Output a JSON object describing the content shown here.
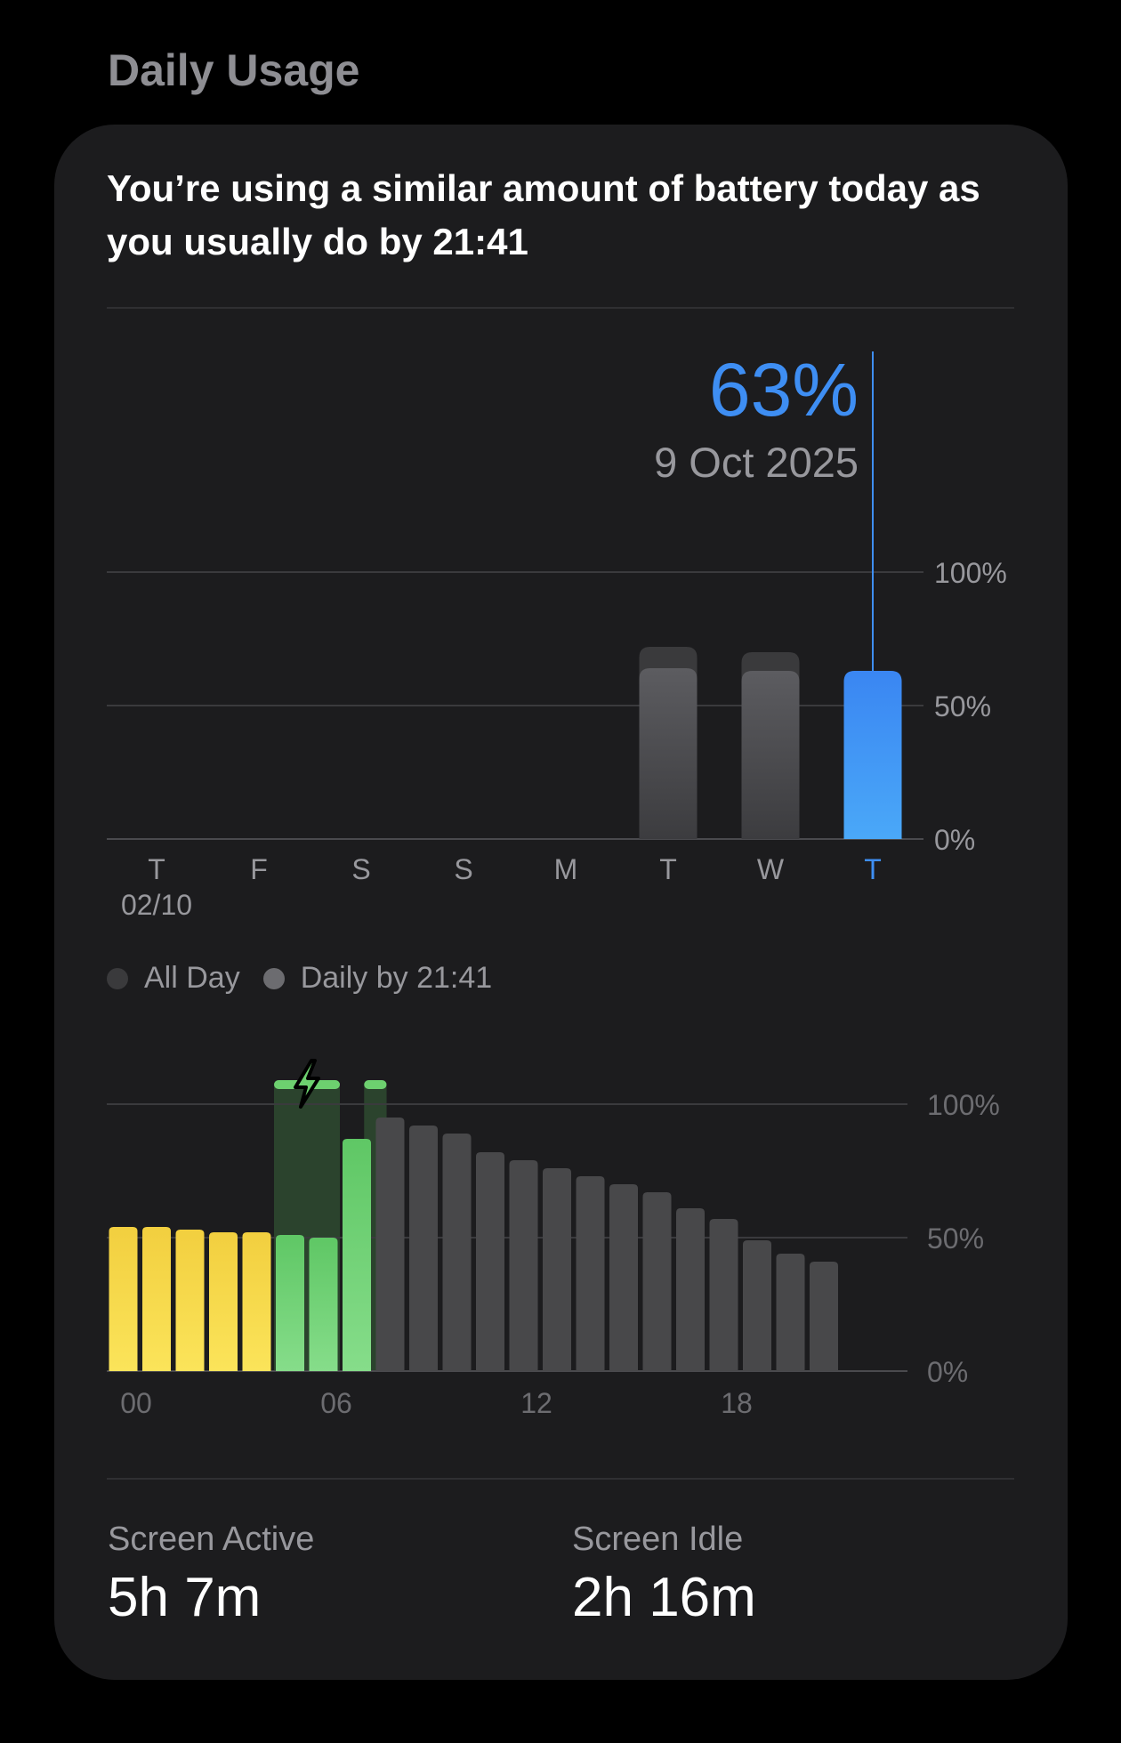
{
  "section_title": "Daily Usage",
  "headline": "You’re using a similar amount of battery today as you usually do by 21:41",
  "selection": {
    "value": "63%",
    "date": "9 Oct 2025"
  },
  "colors": {
    "accent_blue": "#3e8ef3",
    "bar_gray": "#48484a",
    "bar_dark": "#3a3a3c",
    "yellow": "#f5d646",
    "green": "#6dd06f",
    "background": "#000000",
    "card": "#1c1c1e"
  },
  "legend": {
    "all_day": "All Day",
    "daily_by": "Daily by 21:41"
  },
  "icons": {
    "charging": "charging-bolt-icon"
  },
  "stats": {
    "screen_active_label": "Screen Active",
    "screen_active_value": "5h 7m",
    "screen_idle_label": "Screen Idle",
    "screen_idle_value": "2h 16m"
  },
  "chart_data": [
    {
      "type": "bar",
      "categories": [
        "T",
        "F",
        "S",
        "S",
        "M",
        "T",
        "W",
        "T"
      ],
      "sub_labels": [
        "02/10",
        "",
        "",
        "",
        "",
        "",
        "",
        ""
      ],
      "series": [
        {
          "name": "All Day",
          "values": [
            null,
            null,
            null,
            null,
            null,
            72,
            70,
            null
          ]
        },
        {
          "name": "Daily by 21:41",
          "values": [
            null,
            null,
            null,
            null,
            null,
            64,
            63,
            63
          ]
        }
      ],
      "selected_index": 7,
      "y_ticks": [
        "0%",
        "50%",
        "100%"
      ],
      "ylim": [
        0,
        100
      ],
      "legend_placement": "bottom-left",
      "grid": true
    },
    {
      "type": "bar",
      "x_ticks": [
        "00",
        "06",
        "12",
        "18"
      ],
      "hours": [
        0,
        1,
        2,
        3,
        4,
        5,
        6,
        7,
        8,
        9,
        10,
        11,
        12,
        13,
        14,
        15,
        16,
        17,
        18,
        19,
        20,
        21
      ],
      "values": [
        54,
        54,
        53,
        52,
        52,
        51,
        50,
        87,
        95,
        92,
        89,
        82,
        79,
        76,
        73,
        70,
        67,
        61,
        57,
        49,
        44,
        41
      ],
      "bar_colors": [
        "yellow",
        "yellow",
        "yellow",
        "yellow",
        "yellow",
        "green",
        "green",
        "green",
        "gray",
        "gray",
        "gray",
        "gray",
        "gray",
        "gray",
        "gray",
        "gray",
        "gray",
        "gray",
        "gray",
        "gray",
        "gray",
        "gray"
      ],
      "charging_periods": [
        {
          "start_hour": 5,
          "end_hour": 7
        },
        {
          "start_hour": 7.7,
          "end_hour": 8.4
        }
      ],
      "y_ticks": [
        "0%",
        "50%",
        "100%"
      ],
      "ylim": [
        0,
        100
      ],
      "grid": true
    }
  ]
}
